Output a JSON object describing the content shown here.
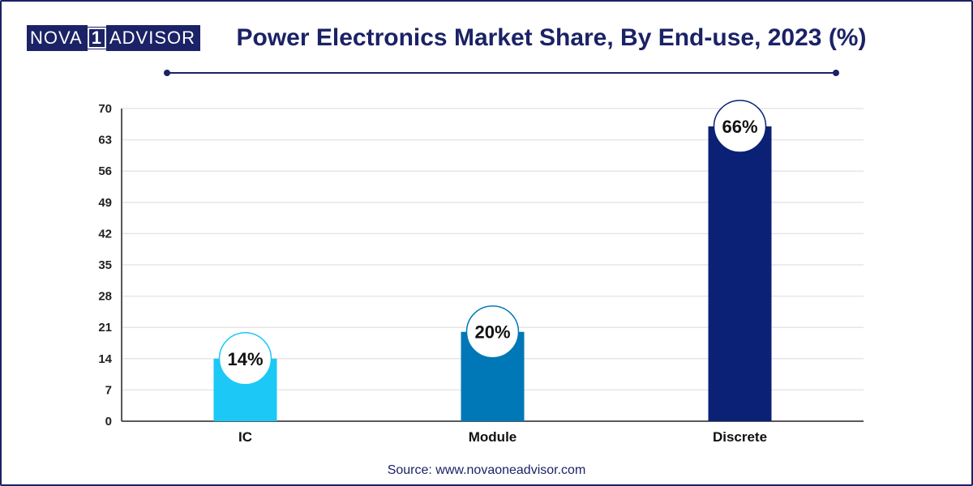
{
  "logo": {
    "part1": "NOVA",
    "part2": "1",
    "part3": "ADVISOR"
  },
  "title": "Power Electronics Market Share, By End-use, 2023 (%)",
  "source": "Source: www.novaoneadvisor.com",
  "chart_data": {
    "type": "bar",
    "title": "Power Electronics Market Share, By End-use, 2023 (%)",
    "xlabel": "",
    "ylabel": "",
    "categories": [
      "IC",
      "Module",
      "Discrete"
    ],
    "values": [
      14,
      20,
      66
    ],
    "data_labels": [
      "14%",
      "20%",
      "66%"
    ],
    "colors": [
      "#1cc8f5",
      "#0077b6",
      "#0b2175"
    ],
    "ylim": [
      0,
      70
    ],
    "yticks": [
      0,
      7,
      14,
      21,
      28,
      35,
      42,
      49,
      56,
      63,
      70
    ],
    "grid": true
  }
}
